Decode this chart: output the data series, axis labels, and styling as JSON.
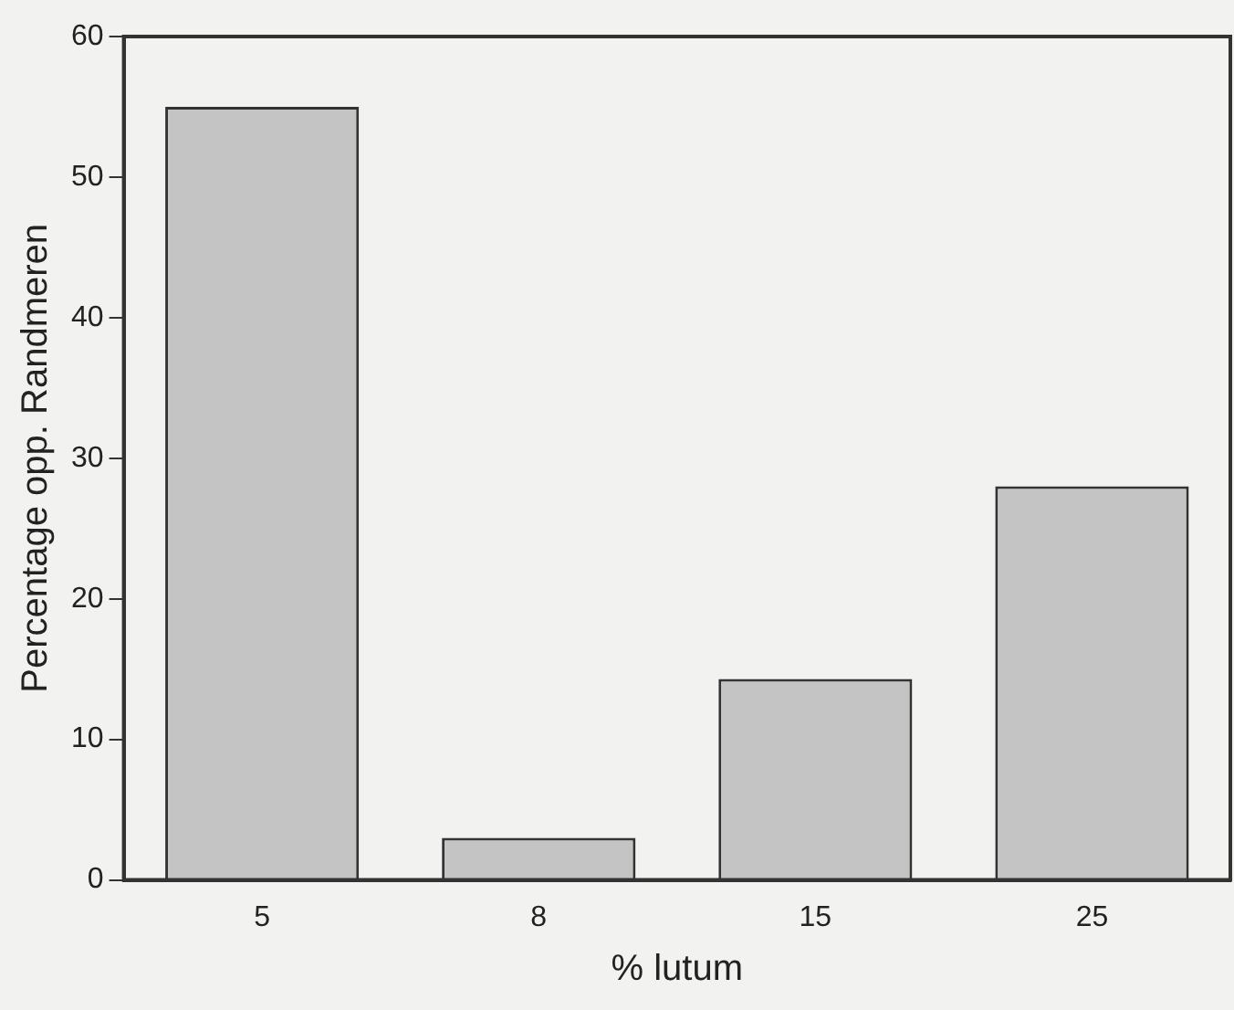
{
  "chart_data": {
    "type": "bar",
    "xlabel": "% lutum",
    "ylabel": "Percentage opp. Randmeren",
    "categories": [
      "5",
      "8",
      "15",
      "25"
    ],
    "values": [
      55,
      3,
      14.3,
      28
    ],
    "color": "#c4c4c4",
    "ylim": [
      0,
      60
    ],
    "yticks": [
      0,
      10,
      20,
      30,
      40,
      50,
      60
    ],
    "grid": false,
    "legend": false
  }
}
